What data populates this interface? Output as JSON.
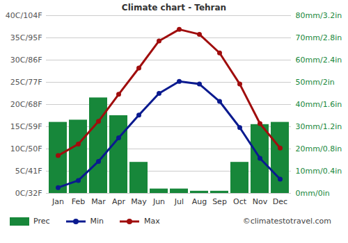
{
  "chart_data": {
    "type": "combo",
    "title": "Climate chart - Tehran",
    "categories": [
      "Jan",
      "Feb",
      "Mar",
      "Apr",
      "May",
      "Jun",
      "Jul",
      "Aug",
      "Sep",
      "Oct",
      "Nov",
      "Dec"
    ],
    "series": [
      {
        "name": "Prec",
        "type": "bar",
        "axis": "y2",
        "color": "#17873a",
        "values": [
          32,
          33,
          43,
          35,
          14,
          2,
          2,
          1,
          1,
          14,
          31,
          32
        ]
      },
      {
        "name": "Min",
        "type": "line",
        "color": "#0a1a8f",
        "marker": "circle",
        "values": [
          1.3,
          2.9,
          7.2,
          12.5,
          17.6,
          22.5,
          25.2,
          24.6,
          20.7,
          14.8,
          7.9,
          3.2
        ]
      },
      {
        "name": "Max",
        "type": "line",
        "color": "#a00d0d",
        "marker": "circle",
        "values": [
          8.5,
          11.1,
          16.2,
          22.3,
          28.2,
          34.3,
          36.9,
          35.8,
          31.6,
          24.6,
          15.7,
          10.2
        ]
      }
    ],
    "ylim": [
      0,
      40
    ],
    "yticks": [
      {
        "value": 0,
        "label": "0C/32F"
      },
      {
        "value": 5,
        "label": "5C/41F"
      },
      {
        "value": 10,
        "label": "10C/50F"
      },
      {
        "value": 15,
        "label": "15C/59F"
      },
      {
        "value": 20,
        "label": "20C/68F"
      },
      {
        "value": 25,
        "label": "25C/77F"
      },
      {
        "value": 30,
        "label": "30C/86F"
      },
      {
        "value": 35,
        "label": "35C/95F"
      },
      {
        "value": 40,
        "label": "40C/104F"
      }
    ],
    "y2lim": [
      0,
      80
    ],
    "y2ticks": [
      {
        "value": 0,
        "label": "0mm/0in"
      },
      {
        "value": 10,
        "label": "10mm/0.4in"
      },
      {
        "value": 20,
        "label": "20mm/0.8in"
      },
      {
        "value": 30,
        "label": "30mm/1.2in"
      },
      {
        "value": 40,
        "label": "40mm/1.6in"
      },
      {
        "value": 50,
        "label": "50mm/2in"
      },
      {
        "value": 60,
        "label": "60mm/2.4in"
      },
      {
        "value": 70,
        "label": "70mm/2.8in"
      },
      {
        "value": 80,
        "label": "80mm/3.2in"
      }
    ],
    "grid": true,
    "legend": "bottom",
    "source": "©climatestotravel.com"
  }
}
